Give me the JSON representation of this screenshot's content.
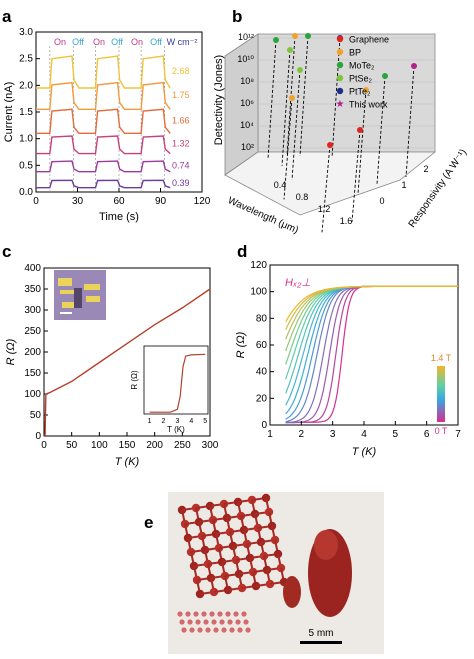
{
  "panels": {
    "a": {
      "letter": "a"
    },
    "b": {
      "letter": "b"
    },
    "c": {
      "letter": "c"
    },
    "d": {
      "letter": "d"
    },
    "e": {
      "letter": "e"
    }
  },
  "colors": {
    "a_traces": [
      "#f0c23a",
      "#f29a3c",
      "#e56b3a",
      "#c8407a",
      "#9a3b9d",
      "#6b3c9a"
    ],
    "c_trace": "#b5402c",
    "b_points": [
      "#e0241f",
      "#f2a22a",
      "#2aa53b",
      "#7ec63f",
      "#1f2c8e",
      "#b0238d"
    ],
    "d_cold": "#d62f8f",
    "d_warm": "#f2a42a"
  },
  "chart_data": [
    {
      "panel": "a",
      "type": "line",
      "xlabel": "Time (s)",
      "ylabel": "Current (nA)",
      "xlim": [
        0,
        120
      ],
      "ylim": [
        0,
        3.0
      ],
      "xticks": [
        0,
        30,
        60,
        90,
        120
      ],
      "yticks": [
        0,
        0.5,
        1.0,
        1.5,
        2.0,
        2.5,
        3.0
      ],
      "annotations": [
        "On",
        "Off",
        "On",
        "Off",
        "On",
        "Off",
        "W cm⁻²"
      ],
      "series": [
        {
          "name": "2.68",
          "off": 1.95,
          "on": 2.55
        },
        {
          "name": "1.75",
          "off": 1.55,
          "on": 2.05
        },
        {
          "name": "1.66",
          "off": 1.1,
          "on": 1.55
        },
        {
          "name": "1.32",
          "off": 0.72,
          "on": 1.05
        },
        {
          "name": "0.74",
          "off": 0.38,
          "on": 0.58
        },
        {
          "name": "0.39",
          "off": 0.08,
          "on": 0.22
        }
      ],
      "on_intervals": [
        [
          10,
          27
        ],
        [
          43,
          60
        ],
        [
          76,
          93
        ]
      ]
    },
    {
      "panel": "b",
      "type": "scatter",
      "zlabel": "Detectivity (Jones)",
      "xlabel": "Wavelength (μm)",
      "ylabel": "Responsivity (A W⁻¹)",
      "zticks": [
        "10²",
        "10⁴",
        "10⁶",
        "10⁸",
        "10¹⁰",
        "10¹²"
      ],
      "xticks": [
        "0.4",
        "0.8",
        "1.2",
        "1.6"
      ],
      "yticks": [
        "0",
        "1",
        "2"
      ],
      "legend": [
        "Graphene",
        "BP",
        "MoTe₂",
        "PtSe₂",
        "PtTe₂",
        "This work"
      ],
      "legend_position": "top-right"
    },
    {
      "panel": "c",
      "type": "line",
      "xlabel": "T (K)",
      "ylabel": "R (Ω)",
      "xlim": [
        0,
        300
      ],
      "ylim": [
        0,
        400
      ],
      "xticks": [
        0,
        50,
        100,
        150,
        200,
        250,
        300
      ],
      "yticks": [
        0,
        50,
        100,
        150,
        200,
        250,
        300,
        350,
        400
      ],
      "points": [
        [
          0,
          2
        ],
        [
          2,
          2
        ],
        [
          3,
          80
        ],
        [
          3.5,
          100
        ],
        [
          10,
          103
        ],
        [
          50,
          130
        ],
        [
          100,
          175
        ],
        [
          150,
          220
        ],
        [
          200,
          265
        ],
        [
          250,
          305
        ],
        [
          300,
          350
        ]
      ],
      "inset": {
        "xlabel": "T (K)",
        "ylabel": "R (Ω)",
        "xticks": [
          1,
          2,
          3,
          4,
          5
        ],
        "points": [
          [
            1,
            3
          ],
          [
            2.5,
            3
          ],
          [
            3,
            8
          ],
          [
            3.2,
            30
          ],
          [
            3.4,
            80
          ],
          [
            3.6,
            98
          ],
          [
            4,
            100
          ],
          [
            5,
            101
          ]
        ]
      }
    },
    {
      "panel": "d",
      "type": "line",
      "xlabel": "T (K)",
      "ylabel": "R (Ω)",
      "xlim": [
        1,
        7
      ],
      "ylim": [
        0,
        120
      ],
      "xticks": [
        1,
        2,
        3,
        4,
        5,
        6,
        7
      ],
      "yticks": [
        0,
        20,
        40,
        60,
        80,
        100,
        120
      ],
      "annotation": "Hₓ₂⊥",
      "colorbar": {
        "top": "1.4 T",
        "bottom": "0 T"
      },
      "fields_T": [
        0,
        0.1,
        0.2,
        0.3,
        0.4,
        0.5,
        0.6,
        0.7,
        0.8,
        0.9,
        1.0,
        1.1,
        1.2,
        1.3,
        1.4
      ],
      "Tc_K": [
        3.3,
        3.1,
        2.9,
        2.7,
        2.5,
        2.35,
        2.2,
        2.05,
        1.9,
        1.75,
        1.6,
        1.45,
        1.3,
        1.15,
        1.0
      ],
      "normal_state_R": 104
    }
  ],
  "photo": {
    "scale_bar": "5 mm"
  }
}
